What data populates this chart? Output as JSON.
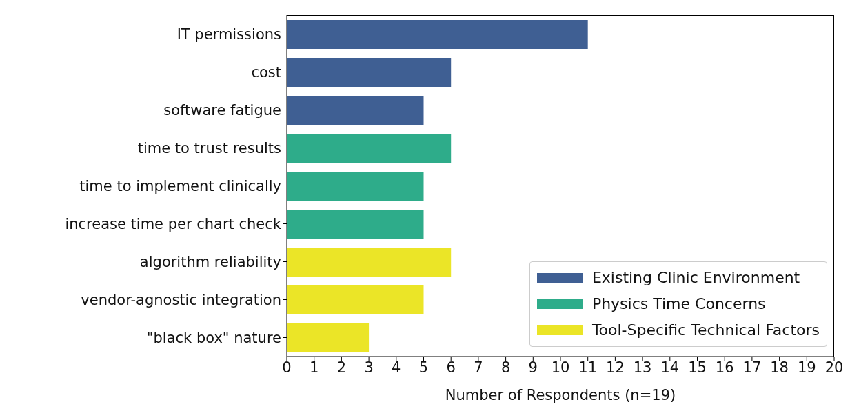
{
  "chart_data": {
    "type": "bar",
    "orientation": "horizontal",
    "stacked": true,
    "xlabel": "Number of Respondents (n=19)",
    "categories": [
      "IT permissions",
      "cost",
      "software fatigue",
      "time to trust results",
      "time to implement clinically",
      "increase time per chart check",
      "algorithm reliability",
      "vendor-agnostic integration",
      "\"black box\" nature"
    ],
    "series": [
      {
        "name": "Existing Clinic Environment",
        "color": "#3f5f93",
        "values": [
          11,
          6,
          5,
          null,
          null,
          null,
          null,
          null,
          null
        ]
      },
      {
        "name": "Physics Time Concerns",
        "color": "#2eac8a",
        "values": [
          null,
          null,
          null,
          6,
          5,
          5,
          null,
          null,
          null
        ]
      },
      {
        "name": "Tool-Specific Technical Factors",
        "color": "#ebe527",
        "values": [
          null,
          null,
          null,
          null,
          null,
          null,
          6,
          5,
          3
        ]
      }
    ],
    "xlim": [
      0,
      20
    ],
    "xticks": [
      0,
      1,
      2,
      3,
      4,
      5,
      6,
      7,
      8,
      9,
      10,
      11,
      12,
      13,
      14,
      15,
      16,
      17,
      18,
      19,
      20
    ],
    "legend": "bottom right"
  }
}
